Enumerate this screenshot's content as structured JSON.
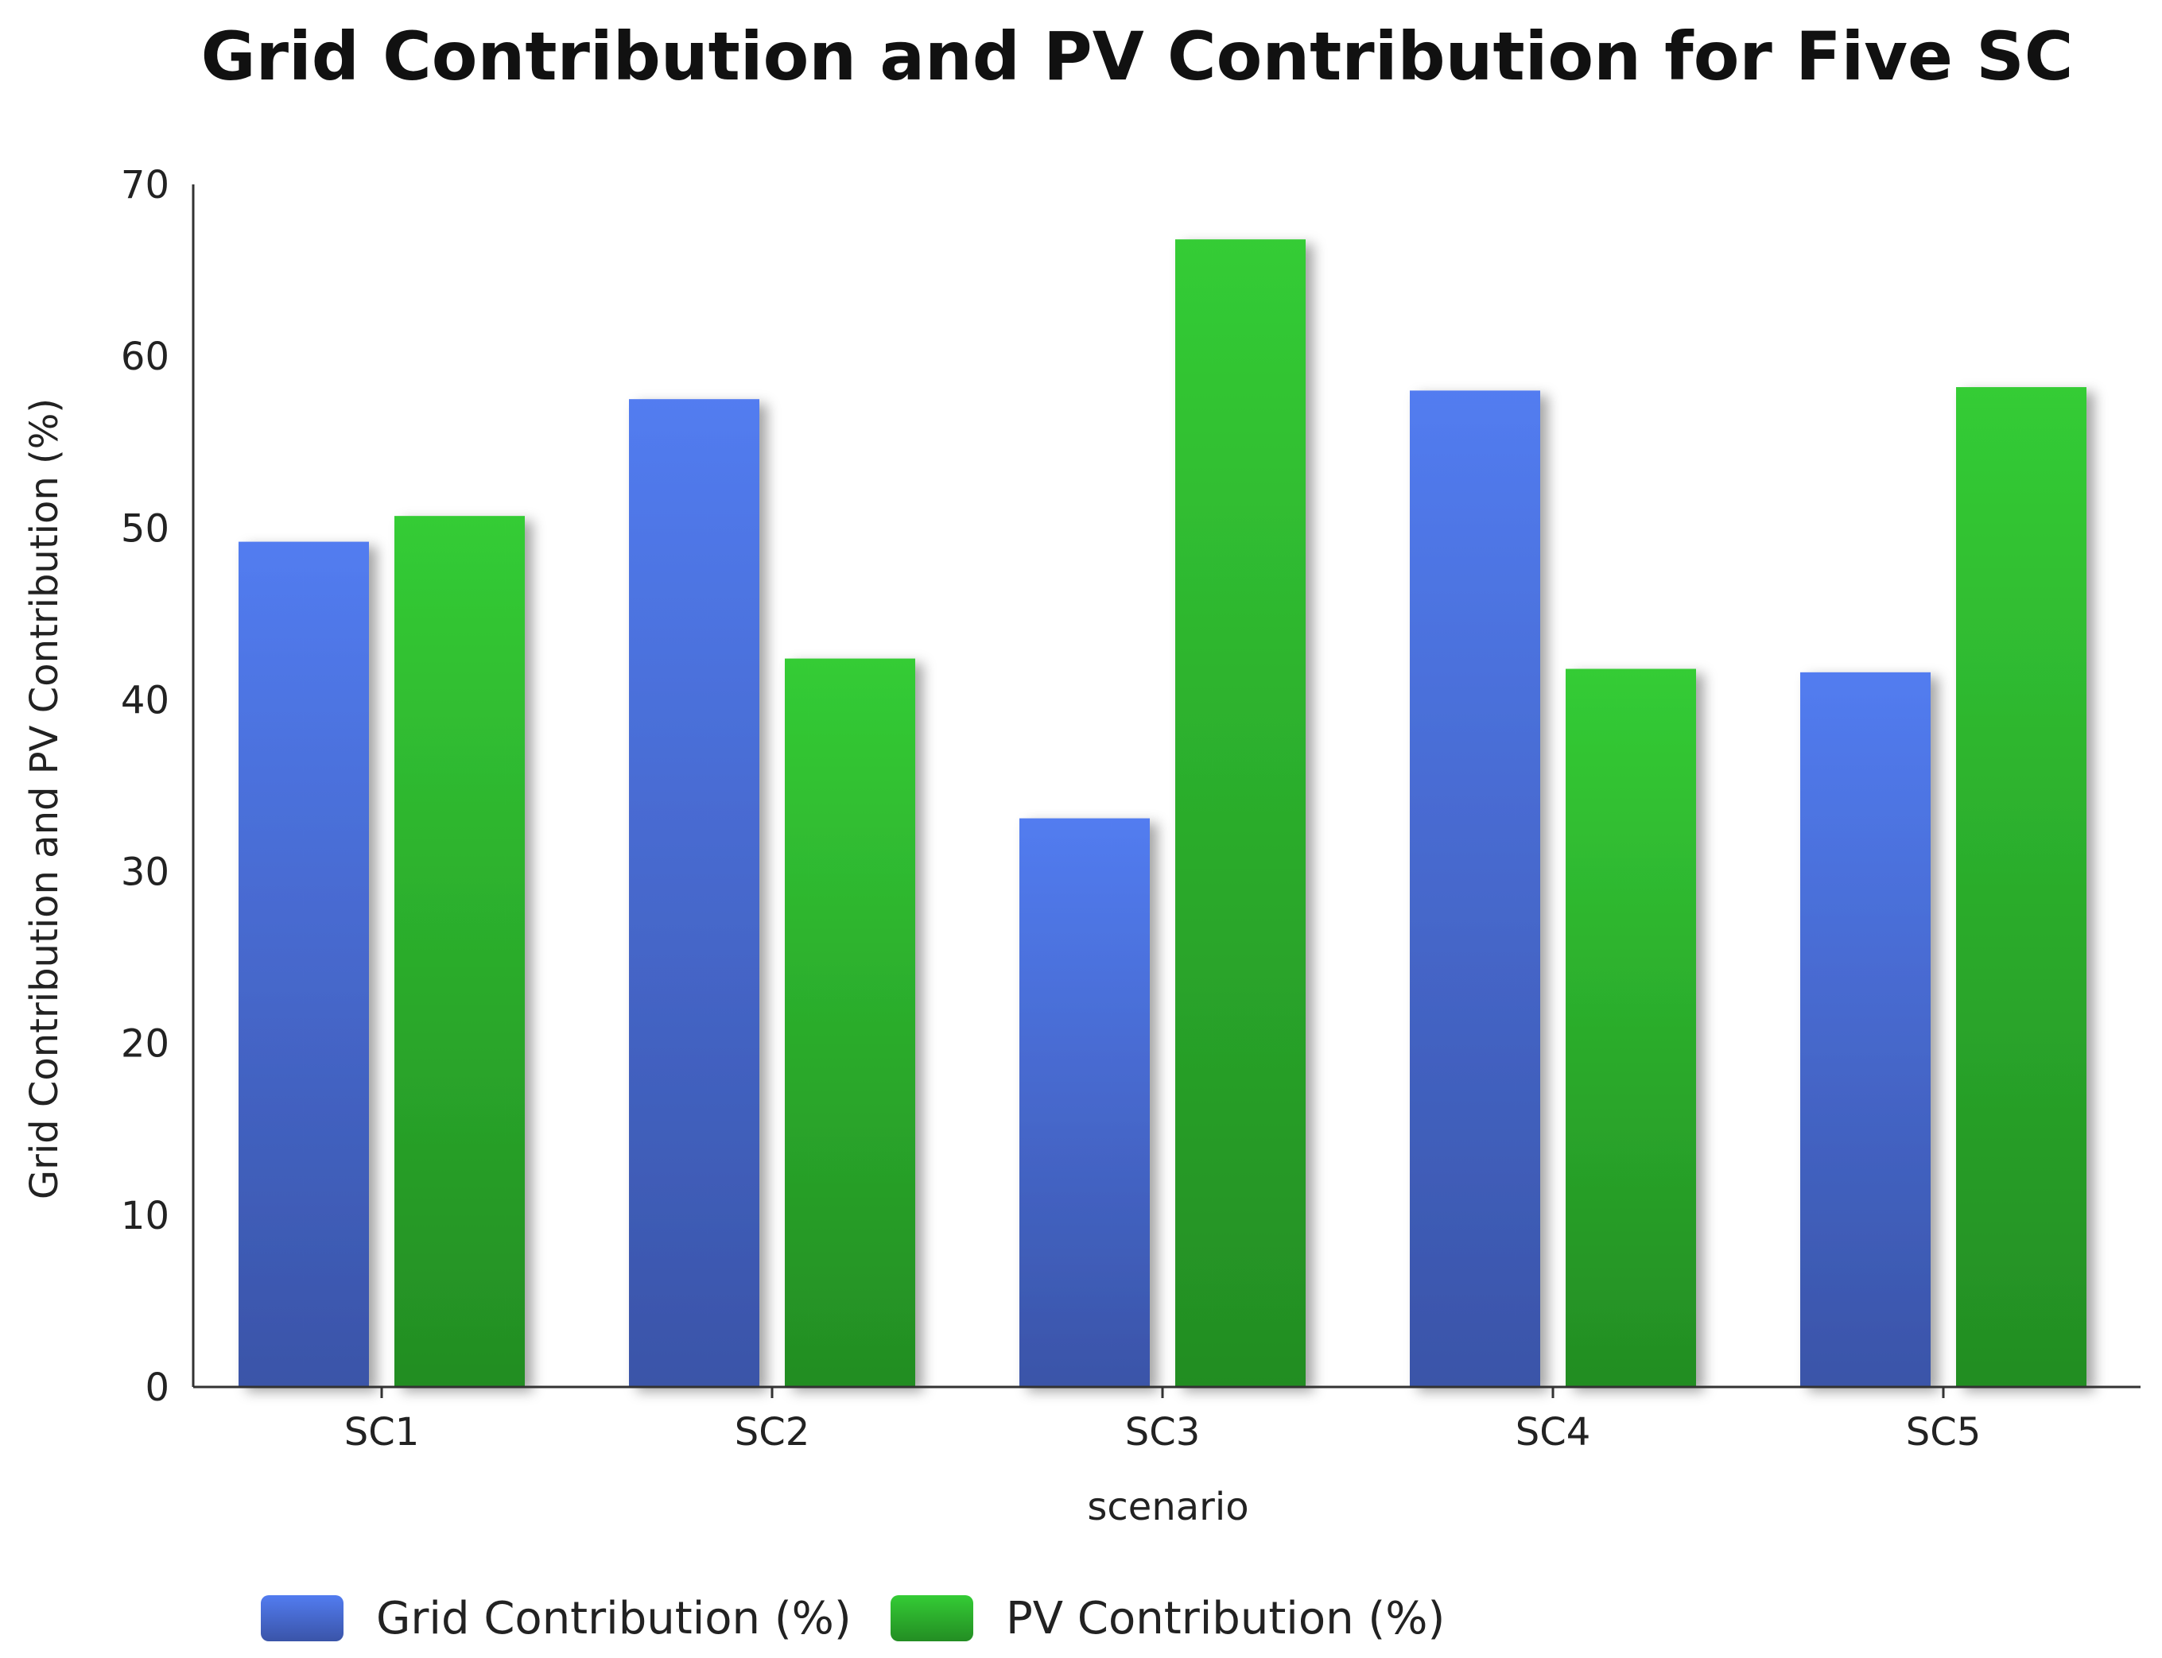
{
  "chart_data": {
    "type": "bar",
    "title": "Grid Contribution and PV Contribution for Five SC",
    "xlabel": "scenario",
    "ylabel": "Grid Contribution and PV Contribution (%)",
    "ylim": [
      0,
      70
    ],
    "yticks": [
      "0",
      "10",
      "20",
      "30",
      "40",
      "50",
      "60",
      "70"
    ],
    "categories": [
      "SC1",
      "SC2",
      "SC3",
      "SC4",
      "SC5"
    ],
    "series": [
      {
        "name": "Grid Contribution (%)",
        "values": [
          49.2,
          57.5,
          33.1,
          58.0,
          41.6
        ],
        "color_top": "#527cf0",
        "color_bottom": "#3a54a8"
      },
      {
        "name": "PV Contribution (%)",
        "values": [
          50.7,
          42.4,
          66.8,
          41.8,
          58.2
        ],
        "color_top": "#34cc35",
        "color_bottom": "#238d23"
      }
    ],
    "legend_position": "bottom",
    "grid": false
  }
}
